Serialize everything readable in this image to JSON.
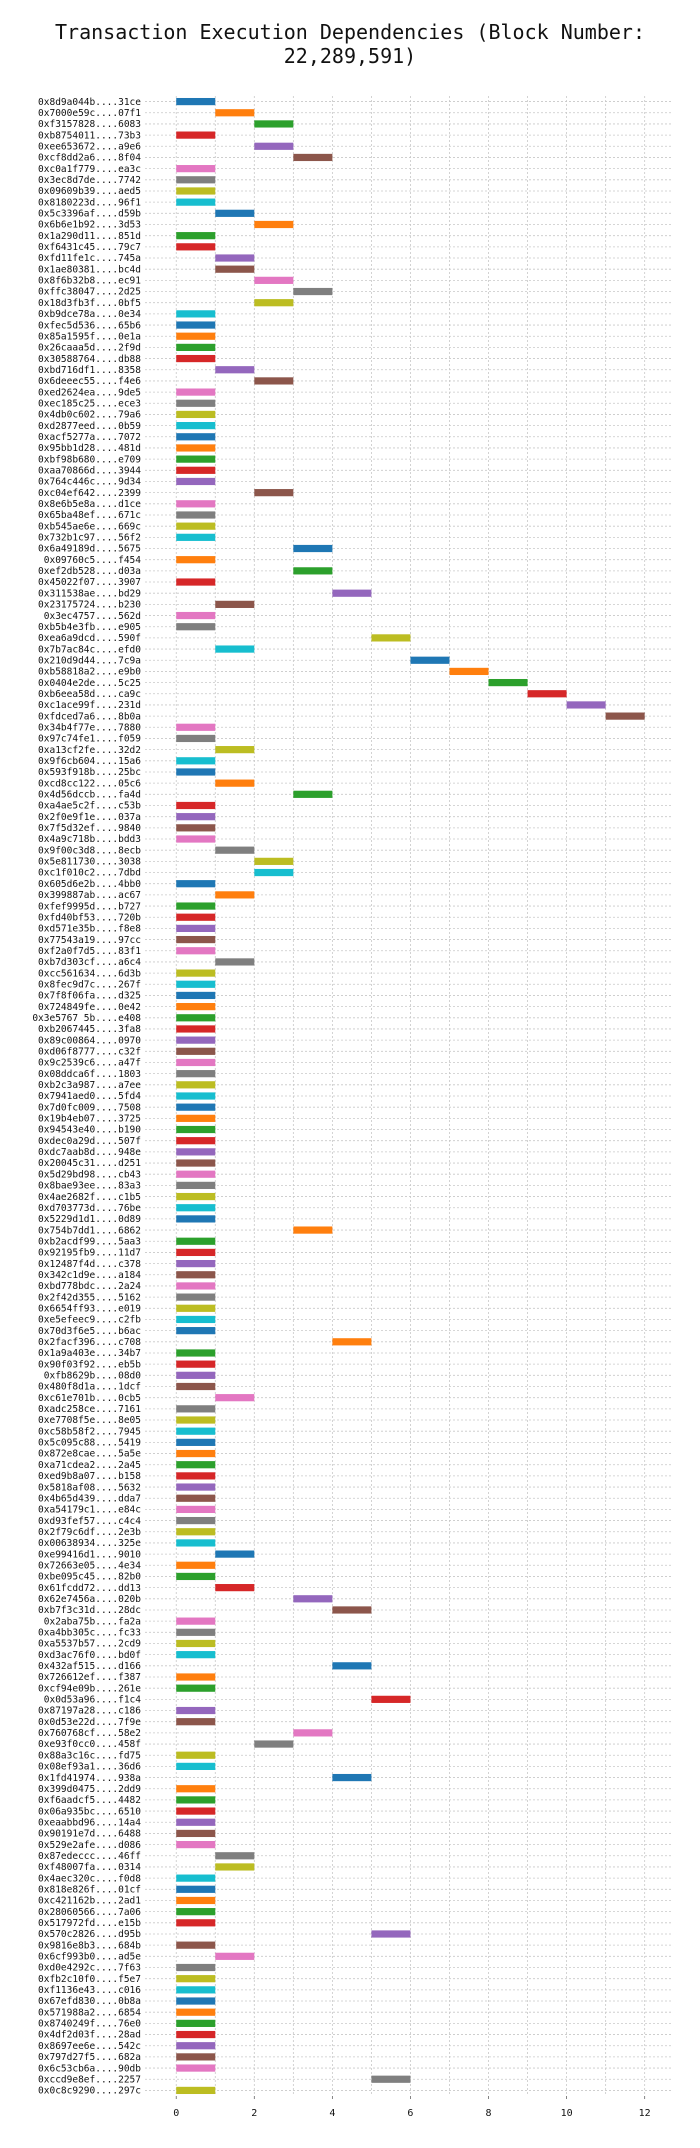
{
  "chart_data": {
    "type": "gantt",
    "title": "Transaction Execution Dependencies (Block Number: 22,289,591)",
    "xlim": [
      -0.8,
      12.7
    ],
    "xticks": [
      0,
      2,
      4,
      6,
      8,
      10,
      12
    ],
    "grid": true,
    "palette": [
      "#1f77b4",
      "#ff7f0e",
      "#2ca02c",
      "#d62728",
      "#9467bd",
      "#8c564b",
      "#e377c2",
      "#7f7f7f",
      "#bcbd22",
      "#17becf"
    ],
    "tasks": [
      [
        "0x8d9a044b....31ce",
        0
      ],
      [
        "0x7000e59c....07f1",
        1
      ],
      [
        "0xf3157828....6083",
        2
      ],
      [
        "0xb8754011....73b3",
        0
      ],
      [
        "0xee653672....a9e6",
        2
      ],
      [
        "0xcf8dd2a6....8f04",
        3
      ],
      [
        "0xc0a1f779....ea3c",
        0
      ],
      [
        "0x3ec8d7de....7742",
        0
      ],
      [
        "0x09609b39....aed5",
        0
      ],
      [
        "0x8180223d....96f1",
        0
      ],
      [
        "0x5c3396af....d59b",
        1
      ],
      [
        "0x6b6e1b92....3d53",
        2
      ],
      [
        "0x1a290d11....851d",
        0
      ],
      [
        "0xf6431c45....79c7",
        0
      ],
      [
        "0xfd11fe1c....745a",
        1
      ],
      [
        "0x1ae80381....bc4d",
        1
      ],
      [
        "0x8f6b32b8....ec91",
        2
      ],
      [
        "0xffc38047....2d25",
        3
      ],
      [
        "0x18d3fb3f....0bf5",
        2
      ],
      [
        "0xb9dce78a....0e34",
        0
      ],
      [
        "0xfec5d536....65b6",
        0
      ],
      [
        "0x85a1595f....0e1a",
        0
      ],
      [
        "0x26caaa5d....2f9d",
        0
      ],
      [
        "0x30588764....db88",
        0
      ],
      [
        "0xbd716df1....8358",
        1
      ],
      [
        "0x6deeec55....f4e6",
        2
      ],
      [
        "0xed2624ea....9de5",
        0
      ],
      [
        "0xec185c25....ece3",
        0
      ],
      [
        "0x4db0c602....79a6",
        0
      ],
      [
        "0xd2877eed....0b59",
        0
      ],
      [
        "0xacf5277a....7072",
        0
      ],
      [
        "0x95bb1d28....481d",
        0
      ],
      [
        "0xbf98b680....e709",
        0
      ],
      [
        "0xaa70866d....3944",
        0
      ],
      [
        "0x764c446c....9d34",
        0
      ],
      [
        "0xc04ef642....2399",
        2
      ],
      [
        "0x8e6b5e8a....d1ce",
        0
      ],
      [
        "0x65ba48ef....671c",
        0
      ],
      [
        "0xb545ae6e....669c",
        0
      ],
      [
        "0x732b1c97....56f2",
        0
      ],
      [
        "0x6a49189d....5675",
        3
      ],
      [
        "0x09760c5....f454",
        0
      ],
      [
        "0xef2db528....d03a",
        3
      ],
      [
        "0x45022f07....3907",
        0
      ],
      [
        "0x311538ae....bd29",
        4
      ],
      [
        "0x23175724....b230",
        1
      ],
      [
        "0x3ec4757....562d",
        0
      ],
      [
        "0xb5b4e3fb....e905",
        0
      ],
      [
        "0xea6a9dcd....590f",
        5
      ],
      [
        "0x7b7ac84c....efd0",
        1
      ],
      [
        "0x210d9d44....7c9a",
        6
      ],
      [
        "0xb58818a2....e9b0",
        7
      ],
      [
        "0x0404e2de....5c25",
        8
      ],
      [
        "0xb6eea58d....ca9c",
        9
      ],
      [
        "0xc1ace99f....231d",
        10
      ],
      [
        "0xfdced7a6....8b0a",
        11
      ],
      [
        "0x34b4f77e....7880",
        0
      ],
      [
        "0x97c74fe1....f059",
        0
      ],
      [
        "0xa13cf2fe....32d2",
        1
      ],
      [
        "0x9f6cb604....15a6",
        0
      ],
      [
        "0x593f918b....25bc",
        0
      ],
      [
        "0xcd8cc122....05c6",
        1
      ],
      [
        "0x4d56dccb....fa4d",
        3
      ],
      [
        "0xa4ae5c2f....c53b",
        0
      ],
      [
        "0x2f0e9f1e....037a",
        0
      ],
      [
        "0x7f5d32ef....9840",
        0
      ],
      [
        "0x4a9c718b....bdd3",
        0
      ],
      [
        "0x9f00c3d8....8ecb",
        1
      ],
      [
        "0x5e811730....3038",
        2
      ],
      [
        "0xc1f010c2....7dbd",
        2
      ],
      [
        "0x605d6e2b....4bb0",
        0
      ],
      [
        "0x399887ab....ac67",
        1
      ],
      [
        "0xfef9995d....b727",
        0
      ],
      [
        "0xfd40bf53....720b",
        0
      ],
      [
        "0xd571e35b....f8e8",
        0
      ],
      [
        "0x77543a19....97cc",
        0
      ],
      [
        "0xf2a0f7d5....83f1",
        0
      ],
      [
        "0xb7d303cf....a6c4",
        1
      ],
      [
        "0xcc561634....6d3b",
        0
      ],
      [
        "0x8fec9d7c....267f",
        0
      ],
      [
        "0x7f8f06fa....d325",
        0
      ],
      [
        "0x724849fe....0e42",
        0
      ],
      [
        "0x3e5767 5b....e408",
        0
      ],
      [
        "0xb2067445....3fa8",
        0
      ],
      [
        "0x89c00864....0970",
        0
      ],
      [
        "0xd06f8777....c32f",
        0
      ],
      [
        "0x9c2539c6....a47f",
        0
      ],
      [
        "0x08ddca6f....1803",
        0
      ],
      [
        "0xb2c3a987....a7ee",
        0
      ],
      [
        "0x7941aed0....5fd4",
        0
      ],
      [
        "0x7d0fc009....7508",
        0
      ],
      [
        "0x19b4eb07....3725",
        0
      ],
      [
        "0x94543e40....b190",
        0
      ],
      [
        "0xdec0a29d....507f",
        0
      ],
      [
        "0xdc7aab8d....948e",
        0
      ],
      [
        "0x20045c31....d251",
        0
      ],
      [
        "0x5d29bd98....cb43",
        0
      ],
      [
        "0x8bae93ee....83a3",
        0
      ],
      [
        "0x4ae2682f....c1b5",
        0
      ],
      [
        "0xd703773d....76be",
        0
      ],
      [
        "0x5229d1d1....0d89",
        0
      ],
      [
        "0x754b7dd1....6862",
        3
      ],
      [
        "0xb2acdf99....5aa3",
        0
      ],
      [
        "0x92195fb9....11d7",
        0
      ],
      [
        "0x12487f4d....c378",
        0
      ],
      [
        "0x342c1d9e....a184",
        0
      ],
      [
        "0xbd778bdc....2a24",
        0
      ],
      [
        "0x2f42d355....5162",
        0
      ],
      [
        "0x6654ff93....e019",
        0
      ],
      [
        "0xe5efeec9....c2fb",
        0
      ],
      [
        "0x70d3f6e5....b6ac",
        0
      ],
      [
        "0x2facf396....c708",
        4
      ],
      [
        "0x1a9a403e....34b7",
        0
      ],
      [
        "0x90f03f92....eb5b",
        0
      ],
      [
        "0xfb8629b....08d0",
        0
      ],
      [
        "0x480f8d1a....1dcf",
        0
      ],
      [
        "0xc61e701b....0cb5",
        1
      ],
      [
        "0xadc258ce....7161",
        0
      ],
      [
        "0xe7708f5e....8e05",
        0
      ],
      [
        "0xc58b58f2....7945",
        0
      ],
      [
        "0x5c095c88....5419",
        0
      ],
      [
        "0x872e8cae....5a5e",
        0
      ],
      [
        "0xa71cdea2....2a45",
        0
      ],
      [
        "0xed9b8a07....b158",
        0
      ],
      [
        "0x5818af08....5632",
        0
      ],
      [
        "0x4b65d439....dda7",
        0
      ],
      [
        "0xa54179c1....e84c",
        0
      ],
      [
        "0xd93fef57....c4c4",
        0
      ],
      [
        "0x2f79c6df....2e3b",
        0
      ],
      [
        "0x00638934....325e",
        0
      ],
      [
        "0xe99416d1....9010",
        1
      ],
      [
        "0x72663e05....4e34",
        0
      ],
      [
        "0xbe095c45....82b0",
        0
      ],
      [
        "0x61fcdd72....dd13",
        1
      ],
      [
        "0x62e7456a....020b",
        3
      ],
      [
        "0xb7f3c31d....28dc",
        4
      ],
      [
        "0x2aba75b....fa2a",
        0
      ],
      [
        "0xa4bb305c....fc33",
        0
      ],
      [
        "0xa5537b57....2cd9",
        0
      ],
      [
        "0xd3ac76f0....bd0f",
        0
      ],
      [
        "0x432af515....d166",
        4
      ],
      [
        "0x726612ef....f387",
        0
      ],
      [
        "0xcf94e09b....261e",
        0
      ],
      [
        "0x0d53a96....f1c4",
        5
      ],
      [
        "0x87197a28....c186",
        0
      ],
      [
        "0x0d53e22d....7f9e",
        0
      ],
      [
        "0x760768cf....58e2",
        3
      ],
      [
        "0xe93f0cc0....458f",
        2
      ],
      [
        "0x88a3c16c....fd75",
        0
      ],
      [
        "0x08ef93a1....36d6",
        0
      ],
      [
        "0x1fd41974....938a",
        4
      ],
      [
        "0x399d0475....2dd9",
        0
      ],
      [
        "0xf6aadcf5....4482",
        0
      ],
      [
        "0x06a935bc....6510",
        0
      ],
      [
        "0xeaabbd96....14a4",
        0
      ],
      [
        "0x90191e7d....6488",
        0
      ],
      [
        "0x529e2afe....d086",
        0
      ],
      [
        "0x87edeccc....46ff",
        1
      ],
      [
        "0xf48007fa....0314",
        1
      ],
      [
        "0x4aec320c....f0d8",
        0
      ],
      [
        "0x818e826f....01cf",
        0
      ],
      [
        "0xc421162b....2ad1",
        0
      ],
      [
        "0x28060566....7a06",
        0
      ],
      [
        "0x517972fd....e15b",
        0
      ],
      [
        "0x570c2826....d95b",
        5
      ],
      [
        "0x9816e8b3....684b",
        0
      ],
      [
        "0x6cf993b0....ad5e",
        1
      ],
      [
        "0xd0e4292c....7f63",
        0
      ],
      [
        "0xfb2c10f0....f5e7",
        0
      ],
      [
        "0xf1136e43....c016",
        0
      ],
      [
        "0x67efd830....0b8a",
        0
      ],
      [
        "0x571988a2....6854",
        0
      ],
      [
        "0x8740249f....76e0",
        0
      ],
      [
        "0x4df2d03f....28ad",
        0
      ],
      [
        "0x8697ee6e....542c",
        0
      ],
      [
        "0x797d27f5....682a",
        0
      ],
      [
        "0x6c53cb6a....90db",
        0
      ],
      [
        "0xccd9e8ef....2257",
        5
      ],
      [
        "0x0c8c9290....297c",
        0
      ]
    ]
  }
}
